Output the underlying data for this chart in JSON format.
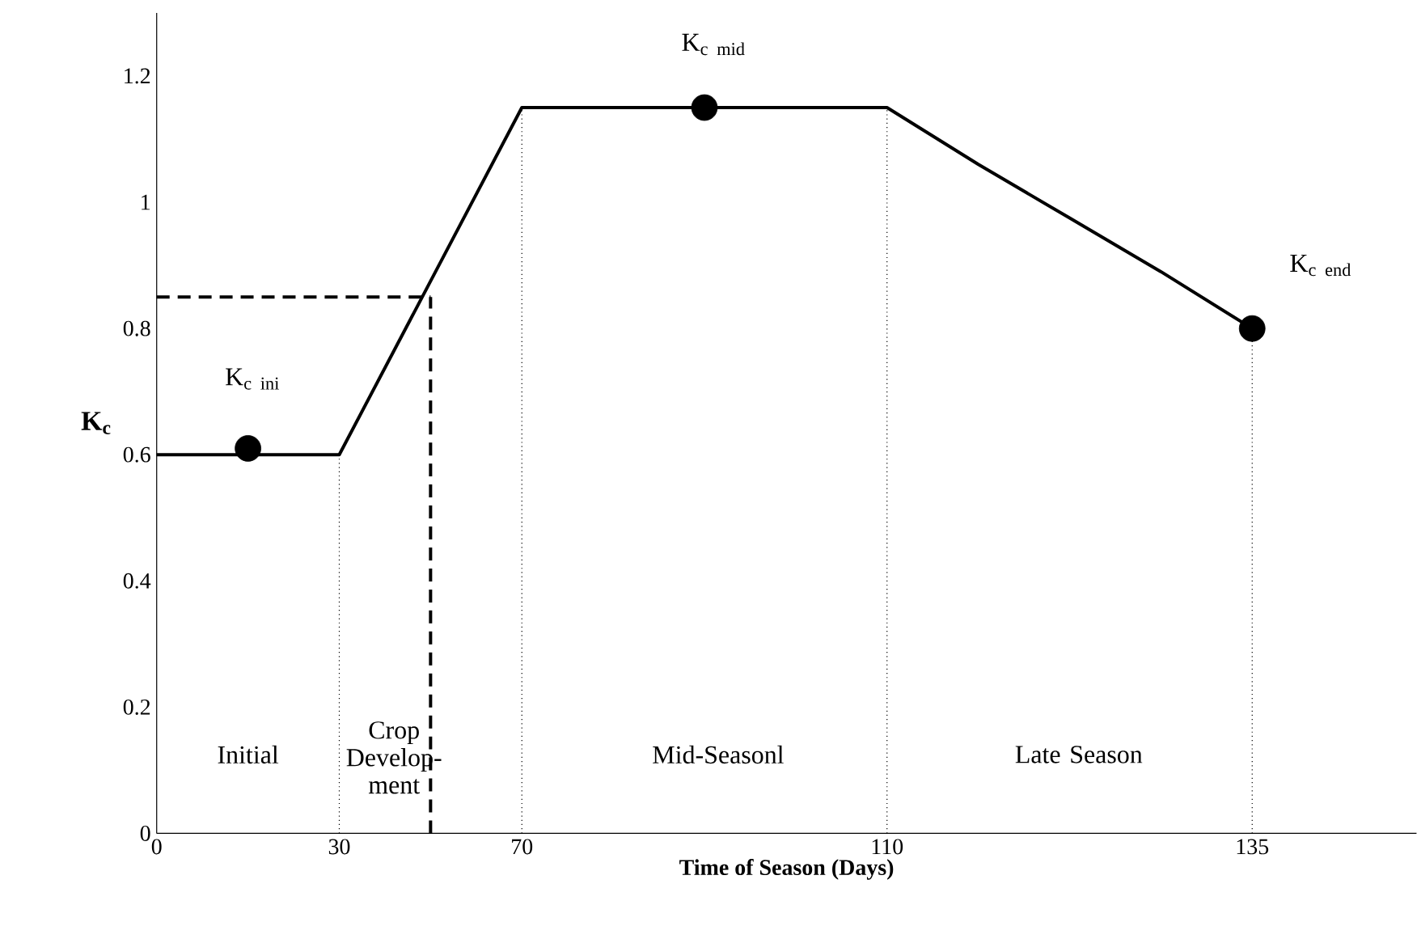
{
  "chart_data": {
    "type": "line",
    "xlabel": "Time of Season (Days)",
    "ylabel": "\\mathbf{K}_{\\mathbf{c}}",
    "categories": [
      "0",
      null,
      "30",
      null,
      "70",
      null,
      null,
      null,
      "110",
      null,
      null,
      null,
      "135"
    ],
    "ylim": [
      0,
      1.3
    ],
    "yticks": [
      0,
      0.2,
      0.4,
      0.6,
      0.8,
      1,
      1.2
    ],
    "grid": false,
    "series": [
      {
        "line_style": "solid",
        "marker": "none",
        "color": "#000000",
        "values": [
          0.6,
          0.6,
          0.6,
          0.875,
          1.15,
          1.15,
          1.15,
          1.15,
          1.15,
          1.06,
          0.975,
          0.89,
          0.8
        ],
        "errors": [
          null,
          null,
          [
            0,
            0.6
          ],
          null,
          [
            0,
            1.15
          ],
          null,
          null,
          null,
          [
            0,
            1.15
          ],
          null,
          null,
          null,
          null
        ]
      },
      {
        "type": "line",
        "line_style": "dashed",
        "marker": "none",
        "color": "#000000",
        "values": [
          0.85,
          0.85,
          0.85,
          0.85,
          null,
          null,
          null,
          null,
          null,
          null,
          null,
          null,
          null
        ],
        "errors": [
          null,
          null,
          null,
          [
            0,
            0.85
          ],
          null,
          null,
          null,
          null,
          null,
          null,
          null,
          null,
          null
        ]
      },
      {
        "type": "scatter",
        "marker": "circle",
        "color": "#000000",
        "values": [
          null,
          0.61,
          null,
          null,
          null,
          null,
          1.15,
          null,
          null,
          null,
          null,
          null,
          0.8
        ],
        "errors": [
          null,
          null,
          null,
          null,
          null,
          null,
          null,
          null,
          null,
          null,
          null,
          null,
          [
            0,
            0.8
          ]
        ]
      }
    ],
    "annotations": [
      "\\mathrm{K}_{\\mathrm{c\\ ini}}",
      "\\mathrm{K}_{\\mathrm{c\\ mid}}",
      "\\mathrm{K}_{\\mathrm{c\\ end}}",
      "Initial",
      "Crop Develop-ment",
      "Mid-Seasonl",
      "Late Season"
    ]
  }
}
